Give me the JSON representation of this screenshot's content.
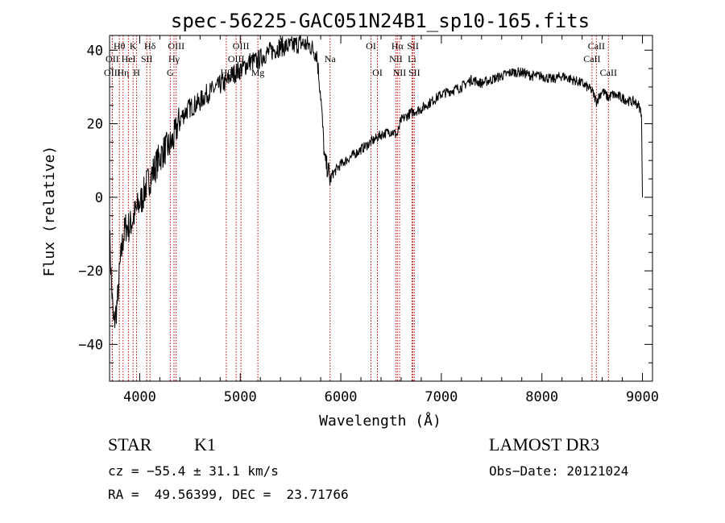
{
  "chart_data": {
    "type": "line",
    "title": "spec-56225-GAC051N24B1_sp10-165.fits",
    "xlabel": "Wavelength (Å)",
    "ylabel": "Flux (relative)",
    "xlim": [
      3700,
      9100
    ],
    "ylim": [
      -50,
      44
    ],
    "xticks": [
      4000,
      5000,
      6000,
      7000,
      8000,
      9000
    ],
    "yticks": [
      -40,
      -20,
      0,
      20,
      40
    ],
    "grid": false,
    "series": [
      {
        "name": "flux",
        "x": [
          3700,
          3720,
          3740,
          3760,
          3780,
          3800,
          3830,
          3860,
          3900,
          3930,
          3960,
          3990,
          4030,
          4060,
          4100,
          4150,
          4200,
          4250,
          4300,
          4340,
          4380,
          4420,
          4480,
          4540,
          4600,
          4660,
          4720,
          4780,
          4820,
          4861,
          4900,
          4960,
          5020,
          5100,
          5170,
          5250,
          5330,
          5400,
          5500,
          5600,
          5700,
          5760,
          5800,
          5840,
          5880,
          5895,
          5910,
          5940,
          6000,
          6100,
          6200,
          6300,
          6400,
          6500,
          6563,
          6600,
          6700,
          6800,
          6900,
          7000,
          7100,
          7200,
          7300,
          7400,
          7500,
          7600,
          7700,
          7800,
          7900,
          8000,
          8100,
          8200,
          8300,
          8400,
          8498,
          8542,
          8600,
          8662,
          8700,
          8800,
          8880,
          8920,
          8960,
          8990,
          9000
        ],
        "y": [
          -10,
          -24,
          -35,
          -32,
          -28,
          -20,
          -12,
          -8,
          -8,
          -6,
          -4,
          -2,
          0,
          3,
          5,
          8,
          11,
          13,
          14,
          16,
          20,
          22,
          24,
          25,
          26,
          28,
          29,
          30,
          31,
          31,
          33,
          34,
          35,
          37,
          37,
          39,
          40,
          41,
          41,
          42,
          41,
          39,
          28,
          10,
          7,
          4,
          6,
          7,
          9,
          11,
          13,
          15,
          17,
          18,
          17,
          21,
          23,
          24,
          26,
          28,
          29,
          30,
          32,
          31,
          32,
          33,
          34,
          34,
          33,
          33,
          32,
          33,
          32,
          31,
          29,
          26,
          29,
          27,
          28,
          27,
          26,
          26,
          25,
          23,
          0
        ]
      }
    ],
    "line_markers": [
      {
        "label": "Hθ",
        "x": 3798,
        "row": 0
      },
      {
        "label": "OII",
        "x": 3727,
        "row": 1
      },
      {
        "label": "OIII",
        "x": 3727,
        "row": 2
      },
      {
        "label": "Hη",
        "x": 3835,
        "row": 2
      },
      {
        "label": "K",
        "x": 3934,
        "row": 0
      },
      {
        "label": "HeI",
        "x": 3889,
        "row": 1
      },
      {
        "label": "H",
        "x": 3969,
        "row": 2
      },
      {
        "label": "Hδ",
        "x": 4102,
        "row": 0
      },
      {
        "label": "SII",
        "x": 4070,
        "row": 1
      },
      {
        "label": "OIII",
        "x": 4363,
        "row": 0
      },
      {
        "label": "Hγ",
        "x": 4341,
        "row": 1
      },
      {
        "label": "G",
        "x": 4304,
        "row": 2
      },
      {
        "label": "OIII",
        "x": 5007,
        "row": 0
      },
      {
        "label": "OIII",
        "x": 4959,
        "row": 1
      },
      {
        "label": "Hβ",
        "x": 4861,
        "row": 2
      },
      {
        "label": "Mg",
        "x": 5175,
        "row": 2
      },
      {
        "label": "Na",
        "x": 5893,
        "row": 1
      },
      {
        "label": "OI",
        "x": 6300,
        "row": 0
      },
      {
        "label": "OI",
        "x": 6364,
        "row": 2
      },
      {
        "label": "Hα",
        "x": 6563,
        "row": 0
      },
      {
        "label": "NII",
        "x": 6548,
        "row": 1
      },
      {
        "label": "NII",
        "x": 6584,
        "row": 2
      },
      {
        "label": "SII",
        "x": 6717,
        "row": 0
      },
      {
        "label": "Li",
        "x": 6708,
        "row": 1
      },
      {
        "label": "SII",
        "x": 6731,
        "row": 2
      },
      {
        "label": "CaII",
        "x": 8542,
        "row": 0
      },
      {
        "label": "CaII",
        "x": 8498,
        "row": 1
      },
      {
        "label": "CaII",
        "x": 8662,
        "row": 2
      }
    ]
  },
  "info": {
    "class": "STAR",
    "subclass": "K1",
    "survey": "LAMOST DR3",
    "cz": "cz = −55.4 ± 31.1 km/s",
    "obs_date": "Obs−Date: 20121024",
    "coords": "RA =  49.56399, DEC =  23.71766"
  },
  "colors": {
    "line": "#000000",
    "marker": "#cc0000",
    "axis": "#000000"
  }
}
